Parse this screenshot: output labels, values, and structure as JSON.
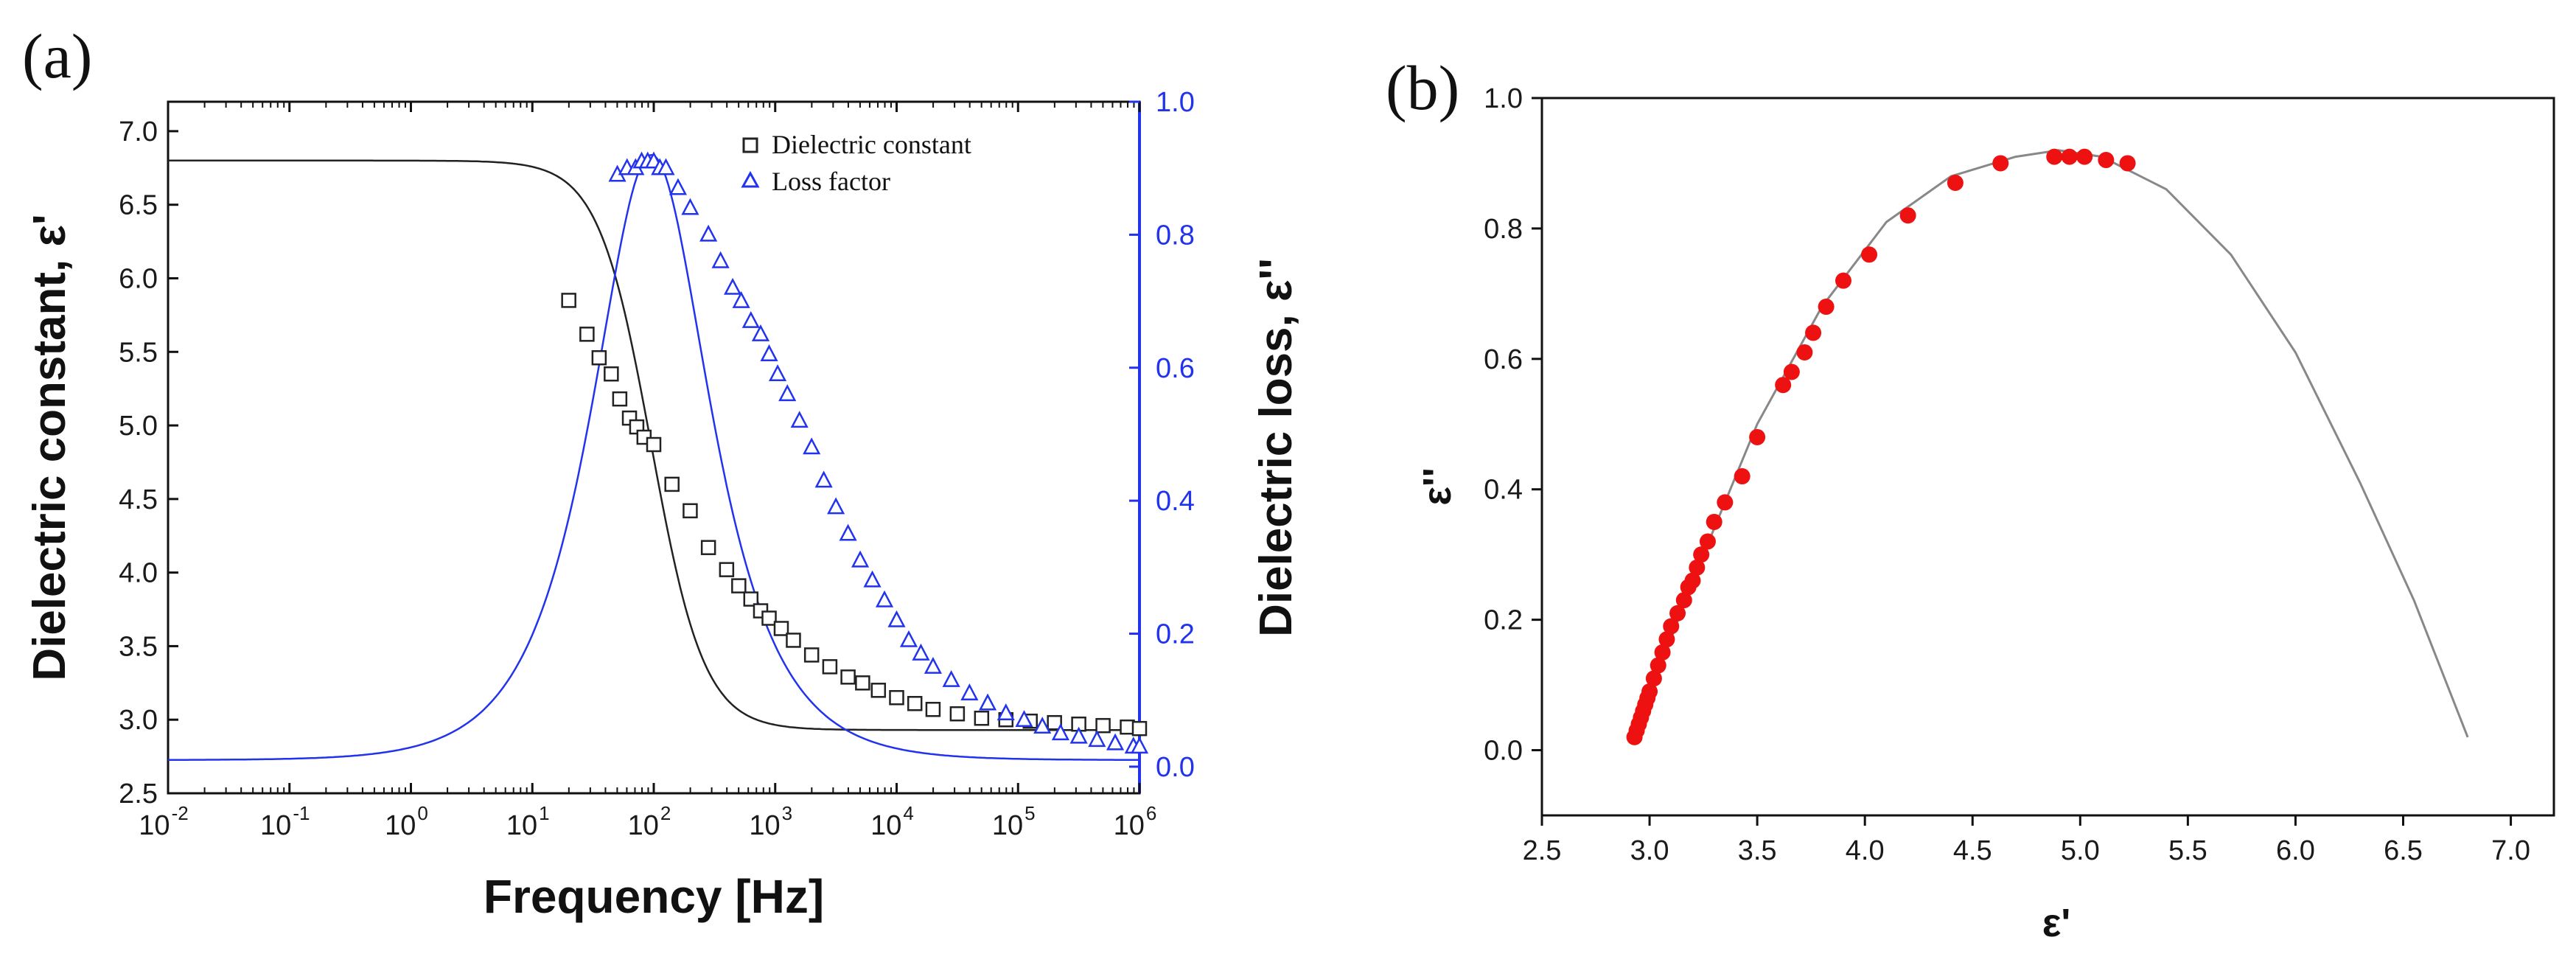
{
  "panel_a": {
    "panel_label": "(a)",
    "x_label": "Frequency [Hz]",
    "y_left_label": "Dielectric constant, ε'",
    "y_right_label": "Dielectric loss, ε''",
    "x_ticks": [
      {
        "base": "10",
        "exp": "-2",
        "value": 0.01
      },
      {
        "base": "10",
        "exp": "-1",
        "value": 0.1
      },
      {
        "base": "10",
        "exp": "0",
        "value": 1
      },
      {
        "base": "10",
        "exp": "1",
        "value": 10
      },
      {
        "base": "10",
        "exp": "2",
        "value": 100
      },
      {
        "base": "10",
        "exp": "3",
        "value": 1000
      },
      {
        "base": "10",
        "exp": "4",
        "value": 10000
      },
      {
        "base": "10",
        "exp": "5",
        "value": 100000
      },
      {
        "base": "10",
        "exp": "6",
        "value": 1000000
      }
    ],
    "y_left_ticks": [
      "2.5",
      "3.0",
      "3.5",
      "4.0",
      "4.5",
      "5.0",
      "5.5",
      "6.0",
      "6.5",
      "7.0"
    ],
    "y_right_ticks": [
      "0.0",
      "0.2",
      "0.4",
      "0.6",
      "0.8",
      "1.0"
    ],
    "legend": [
      {
        "label": "Dielectric  constant",
        "marker": "square",
        "color": "#222222"
      },
      {
        "label": "Loss factor",
        "marker": "triangle",
        "color": "#2233ee"
      }
    ],
    "colors": {
      "constant": "#222222",
      "loss": "#2233ee"
    }
  },
  "panel_b": {
    "panel_label": "(b)",
    "x_label": "ε'",
    "y_label": "ε''",
    "x_ticks": [
      "2.5",
      "3.0",
      "3.5",
      "4.0",
      "4.5",
      "5.0",
      "5.5",
      "6.0",
      "6.5",
      "7.0"
    ],
    "y_ticks": [
      "0.0",
      "0.2",
      "0.4",
      "0.6",
      "0.8",
      "1.0"
    ],
    "colors": {
      "points": "#ee1111",
      "curve": "#888888"
    }
  },
  "chart_data": [
    {
      "type": "scatter",
      "title": "",
      "xlabel": "Frequency [Hz]",
      "ylabel": "Dielectric constant, ε'",
      "y2label": "Dielectric loss, ε''",
      "xscale": "log",
      "xlim": [
        0.01,
        1000000
      ],
      "ylim": [
        2.5,
        7.2
      ],
      "y2lim": [
        -0.04,
        1.0
      ],
      "model": {
        "eps_s": 6.8,
        "eps_inf": 2.93,
        "tau_log10_f_peak": 1.98
      },
      "series": [
        {
          "name": "Dielectric  constant",
          "axis": "left",
          "marker": "square",
          "log10_freq": [
            1.3,
            1.45,
            1.55,
            1.65,
            1.72,
            1.8,
            1.86,
            1.92,
            2.0,
            2.15,
            2.3,
            2.45,
            2.6,
            2.7,
            2.8,
            2.88,
            2.95,
            3.05,
            3.15,
            3.3,
            3.45,
            3.6,
            3.72,
            3.85,
            4.0,
            4.15,
            4.3,
            4.5,
            4.7,
            4.9,
            5.1,
            5.3,
            5.5,
            5.7,
            5.9,
            6.0
          ],
          "values": [
            5.85,
            5.62,
            5.46,
            5.35,
            5.18,
            5.05,
            4.99,
            4.92,
            4.87,
            4.6,
            4.42,
            4.17,
            4.02,
            3.91,
            3.82,
            3.74,
            3.69,
            3.62,
            3.54,
            3.44,
            3.36,
            3.29,
            3.25,
            3.2,
            3.15,
            3.11,
            3.07,
            3.04,
            3.01,
            3.0,
            2.99,
            2.98,
            2.97,
            2.96,
            2.95,
            2.94
          ]
        },
        {
          "name": "Loss factor",
          "axis": "right",
          "marker": "triangle",
          "log10_freq": [
            1.7,
            1.78,
            1.85,
            1.9,
            1.95,
            2.0,
            2.05,
            2.1,
            2.2,
            2.3,
            2.45,
            2.55,
            2.65,
            2.72,
            2.8,
            2.88,
            2.95,
            3.02,
            3.1,
            3.2,
            3.3,
            3.4,
            3.5,
            3.6,
            3.7,
            3.8,
            3.9,
            4.0,
            4.1,
            4.2,
            4.3,
            4.45,
            4.6,
            4.75,
            4.9,
            5.05,
            5.2,
            5.35,
            5.5,
            5.65,
            5.8,
            5.95,
            6.0
          ],
          "values": [
            0.89,
            0.9,
            0.9,
            0.91,
            0.91,
            0.91,
            0.9,
            0.9,
            0.87,
            0.84,
            0.8,
            0.76,
            0.72,
            0.7,
            0.67,
            0.65,
            0.62,
            0.59,
            0.56,
            0.52,
            0.48,
            0.43,
            0.39,
            0.35,
            0.31,
            0.28,
            0.25,
            0.22,
            0.19,
            0.17,
            0.15,
            0.13,
            0.11,
            0.095,
            0.08,
            0.07,
            0.06,
            0.05,
            0.045,
            0.04,
            0.035,
            0.03,
            0.03
          ]
        }
      ]
    },
    {
      "type": "scatter",
      "title": "",
      "xlabel": "ε'",
      "ylabel": "ε''",
      "xlim": [
        2.5,
        7.2
      ],
      "ylim": [
        -0.1,
        1.0
      ],
      "series": [
        {
          "name": "measured",
          "marker": "circle",
          "x": [
            2.93,
            2.94,
            2.95,
            2.96,
            2.97,
            2.98,
            2.99,
            3.0,
            3.02,
            3.04,
            3.06,
            3.08,
            3.1,
            3.13,
            3.16,
            3.18,
            3.2,
            3.22,
            3.24,
            3.27,
            3.3,
            3.35,
            3.43,
            3.5,
            3.62,
            3.66,
            3.72,
            3.76,
            3.82,
            3.9,
            4.02,
            4.2,
            4.42,
            4.63,
            4.88,
            4.95,
            5.02,
            5.12,
            5.22
          ],
          "y": [
            0.02,
            0.03,
            0.04,
            0.05,
            0.06,
            0.07,
            0.08,
            0.09,
            0.11,
            0.13,
            0.15,
            0.17,
            0.19,
            0.21,
            0.23,
            0.25,
            0.26,
            0.28,
            0.3,
            0.32,
            0.35,
            0.38,
            0.42,
            0.48,
            0.56,
            0.58,
            0.61,
            0.64,
            0.68,
            0.72,
            0.76,
            0.82,
            0.87,
            0.9,
            0.91,
            0.91,
            0.91,
            0.905,
            0.9
          ]
        },
        {
          "name": "fit",
          "marker": "line",
          "x": [
            2.93,
            3.2,
            3.5,
            3.8,
            4.1,
            4.4,
            4.7,
            4.9,
            5.1,
            5.4,
            5.7,
            6.0,
            6.3,
            6.55,
            6.8
          ],
          "y": [
            0.02,
            0.26,
            0.5,
            0.68,
            0.81,
            0.88,
            0.91,
            0.92,
            0.91,
            0.86,
            0.76,
            0.61,
            0.41,
            0.23,
            0.02
          ]
        }
      ]
    }
  ]
}
